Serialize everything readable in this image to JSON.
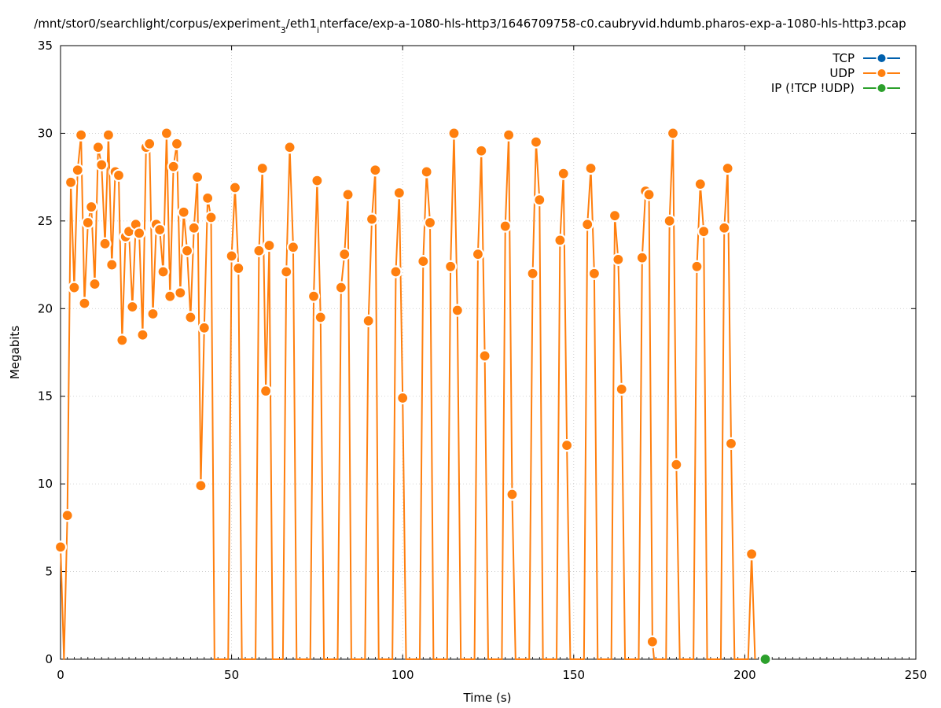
{
  "chart_data": {
    "type": "line",
    "title": "/mnt/stor0/searchlight/corpus/experiment",
    "title_sub1": "3",
    "title_mid": "/eth1",
    "title_sub2": "i",
    "title_rest": "nterface/exp-a-1080-hls-http3/1646709758-c0.caubryvid.hdumb.pharos-exp-a-1080-hls-http3.pcap",
    "xlabel": "Time (s)",
    "ylabel": "Megabits",
    "xlim": [
      0,
      250
    ],
    "ylim": [
      0,
      35
    ],
    "x_ticks": [
      "0",
      "50",
      "100",
      "150",
      "200",
      "250"
    ],
    "y_ticks": [
      "0",
      "5",
      "10",
      "15",
      "20",
      "25",
      "30",
      "35"
    ],
    "grid": true,
    "legend_position": "top-right",
    "series": [
      {
        "name": "TCP",
        "color": "#0060ad",
        "points": []
      },
      {
        "name": "UDP",
        "color": "#ff7f0e",
        "points": [
          [
            0,
            6.4
          ],
          [
            1,
            0
          ],
          [
            2,
            8.2
          ],
          [
            3,
            27.2
          ],
          [
            4,
            21.2
          ],
          [
            5,
            27.9
          ],
          [
            6,
            29.9
          ],
          [
            7,
            20.3
          ],
          [
            8,
            24.9
          ],
          [
            9,
            25.8
          ],
          [
            10,
            21.4
          ],
          [
            11,
            29.2
          ],
          [
            12,
            28.2
          ],
          [
            13,
            23.7
          ],
          [
            14,
            29.9
          ],
          [
            15,
            22.5
          ],
          [
            16,
            27.8
          ],
          [
            17,
            27.6
          ],
          [
            18,
            18.2
          ],
          [
            19,
            24.1
          ],
          [
            20,
            24.4
          ],
          [
            21,
            20.1
          ],
          [
            22,
            24.8
          ],
          [
            23,
            24.3
          ],
          [
            24,
            18.5
          ],
          [
            25,
            29.2
          ],
          [
            26,
            29.4
          ],
          [
            27,
            19.7
          ],
          [
            28,
            24.8
          ],
          [
            29,
            24.5
          ],
          [
            30,
            22.1
          ],
          [
            31,
            30.0
          ],
          [
            32,
            20.7
          ],
          [
            33,
            28.1
          ],
          [
            34,
            29.4
          ],
          [
            35,
            20.9
          ],
          [
            36,
            25.5
          ],
          [
            37,
            23.3
          ],
          [
            38,
            19.5
          ],
          [
            39,
            24.6
          ],
          [
            40,
            27.5
          ],
          [
            41,
            9.9
          ],
          [
            42,
            18.9
          ],
          [
            43,
            26.3
          ],
          [
            44,
            25.2
          ],
          [
            45,
            0
          ],
          [
            49,
            0
          ],
          [
            50,
            23.0
          ],
          [
            51,
            26.9
          ],
          [
            52,
            22.3
          ],
          [
            53,
            0
          ],
          [
            57,
            0
          ],
          [
            58,
            23.3
          ],
          [
            59,
            28.0
          ],
          [
            60,
            15.3
          ],
          [
            61,
            23.6
          ],
          [
            62,
            0
          ],
          [
            65,
            0
          ],
          [
            66,
            22.1
          ],
          [
            67,
            29.2
          ],
          [
            68,
            23.5
          ],
          [
            69,
            0
          ],
          [
            73,
            0
          ],
          [
            74,
            20.7
          ],
          [
            75,
            27.3
          ],
          [
            76,
            19.5
          ],
          [
            77,
            0
          ],
          [
            81,
            0
          ],
          [
            82,
            21.2
          ],
          [
            83,
            23.1
          ],
          [
            84,
            26.5
          ],
          [
            85,
            0
          ],
          [
            89,
            0
          ],
          [
            90,
            19.3
          ],
          [
            91,
            25.1
          ],
          [
            92,
            27.9
          ],
          [
            93,
            0
          ],
          [
            97,
            0
          ],
          [
            98,
            22.1
          ],
          [
            99,
            26.6
          ],
          [
            100,
            14.9
          ],
          [
            101,
            0
          ],
          [
            105,
            0
          ],
          [
            106,
            22.7
          ],
          [
            107,
            27.8
          ],
          [
            108,
            24.9
          ],
          [
            109,
            0
          ],
          [
            113,
            0
          ],
          [
            114,
            22.4
          ],
          [
            115,
            30.0
          ],
          [
            116,
            19.9
          ],
          [
            117,
            0
          ],
          [
            121,
            0
          ],
          [
            122,
            23.1
          ],
          [
            123,
            29.0
          ],
          [
            124,
            17.3
          ],
          [
            125,
            0
          ],
          [
            129,
            0
          ],
          [
            130,
            24.7
          ],
          [
            131,
            29.9
          ],
          [
            132,
            9.4
          ],
          [
            133,
            0
          ],
          [
            137,
            0
          ],
          [
            138,
            22.0
          ],
          [
            139,
            29.5
          ],
          [
            140,
            26.2
          ],
          [
            141,
            0
          ],
          [
            145,
            0
          ],
          [
            146,
            23.9
          ],
          [
            147,
            27.7
          ],
          [
            148,
            12.2
          ],
          [
            149,
            0
          ],
          [
            153,
            0
          ],
          [
            154,
            24.8
          ],
          [
            155,
            28.0
          ],
          [
            156,
            22.0
          ],
          [
            157,
            0
          ],
          [
            161,
            0
          ],
          [
            162,
            25.3
          ],
          [
            163,
            22.8
          ],
          [
            164,
            15.4
          ],
          [
            165,
            0
          ],
          [
            169,
            0
          ],
          [
            170,
            22.9
          ],
          [
            171,
            26.7
          ],
          [
            172,
            26.5
          ],
          [
            173,
            1.0
          ],
          [
            173.5,
            0
          ],
          [
            177,
            0
          ],
          [
            178,
            25.0
          ],
          [
            179,
            30.0
          ],
          [
            180,
            11.1
          ],
          [
            181,
            0
          ],
          [
            185,
            0
          ],
          [
            186,
            22.4
          ],
          [
            187,
            27.1
          ],
          [
            188,
            24.4
          ],
          [
            189,
            0
          ],
          [
            193,
            0
          ],
          [
            194,
            24.6
          ],
          [
            195,
            28.0
          ],
          [
            196,
            12.3
          ],
          [
            197,
            0
          ],
          [
            201,
            0
          ],
          [
            202,
            6.0
          ],
          [
            203,
            0
          ]
        ]
      },
      {
        "name": "IP (!TCP  !UDP)",
        "color": "#2ca02c",
        "points": [
          [
            206,
            0
          ]
        ]
      }
    ]
  }
}
